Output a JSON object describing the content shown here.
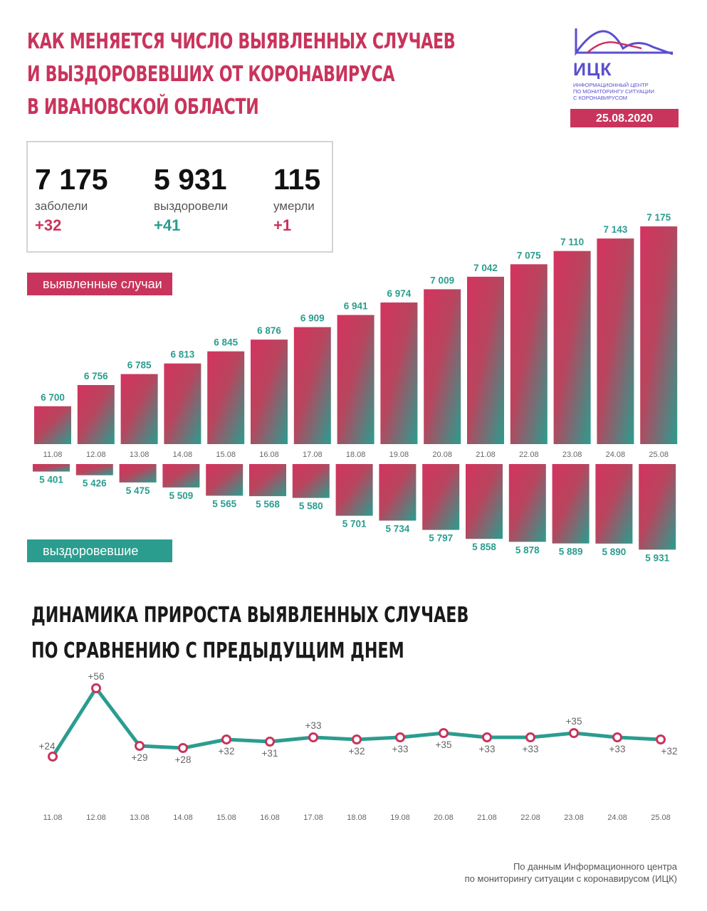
{
  "header": {
    "title_lines": [
      "Как меняется число выявленных случаев",
      "и выздоровевших от коронавируса",
      "в Ивановской области"
    ],
    "logo_abbr": "ИЦК",
    "logo_sub_lines": [
      "информационный центр",
      "по мониторингу ситуации",
      "с коронавирусом"
    ],
    "date": "25.08.2020"
  },
  "stats": [
    {
      "value": "7 175",
      "label": "заболели",
      "delta": "+32",
      "color": "#c9345c"
    },
    {
      "value": "5 931",
      "label": "выздоровели",
      "delta": "+41",
      "color": "#2a9d8f"
    },
    {
      "value": "115",
      "label": "умерли",
      "delta": "+1",
      "color": "#c9345c"
    }
  ],
  "labels": {
    "cases": "выявленные случаи",
    "recovered": "выздоровевшие"
  },
  "subtitle_lines": [
    "Динамика прироста выявленных случаев",
    "по сравнению с предыдущим днем"
  ],
  "footer_lines": [
    "По данным Информационного центра",
    "по мониторингу ситуации с коронавирусом (ИЦК)"
  ],
  "colors": {
    "pink": "#c9345c",
    "teal": "#2a9d8f",
    "line": "#2a9d8f"
  },
  "chart_data": [
    {
      "type": "bar",
      "categories": [
        "11.08",
        "12.08",
        "13.08",
        "14.08",
        "15.08",
        "16.08",
        "17.08",
        "18.08",
        "19.08",
        "20.08",
        "21.08",
        "22.08",
        "23.08",
        "24.08",
        "25.08"
      ],
      "values": [
        6700,
        6756,
        6785,
        6813,
        6845,
        6876,
        6909,
        6941,
        6974,
        7009,
        7042,
        7075,
        7110,
        7143,
        7175
      ],
      "value_labels": [
        "6 700",
        "6 756",
        "6 785",
        "6 813",
        "6 845",
        "6 876",
        "6 909",
        "6 941",
        "6 974",
        "7 009",
        "7 042",
        "7 075",
        "7 110",
        "7 143",
        "7 175"
      ]
    },
    {
      "type": "bar",
      "categories": [
        "11.08",
        "12.08",
        "13.08",
        "14.08",
        "15.08",
        "16.08",
        "17.08",
        "18.08",
        "19.08",
        "20.08",
        "21.08",
        "22.08",
        "23.08",
        "24.08",
        "25.08"
      ],
      "values": [
        5401,
        5426,
        5475,
        5509,
        5565,
        5568,
        5580,
        5701,
        5734,
        5797,
        5858,
        5878,
        5889,
        5890,
        5931
      ],
      "value_labels": [
        "5 401",
        "5 426",
        "5 475",
        "5 509",
        "5 565",
        "5 568",
        "5 580",
        "5 701",
        "5 734",
        "5 797",
        "5 858",
        "5 878",
        "5 889",
        "5 890",
        "5 931"
      ]
    },
    {
      "type": "line",
      "x": [
        "11.08",
        "12.08",
        "13.08",
        "14.08",
        "15.08",
        "16.08",
        "17.08",
        "18.08",
        "19.08",
        "20.08",
        "21.08",
        "22.08",
        "23.08",
        "24.08",
        "25.08"
      ],
      "values": [
        24,
        56,
        29,
        28,
        32,
        31,
        33,
        32,
        33,
        35,
        33,
        33,
        35,
        33,
        32
      ],
      "value_labels": [
        "+24",
        "+56",
        "+29",
        "+28",
        "+32",
        "+31",
        "+33",
        "+32",
        "+33",
        "+35",
        "+33",
        "+33",
        "+35",
        "+33",
        "+32"
      ]
    }
  ]
}
